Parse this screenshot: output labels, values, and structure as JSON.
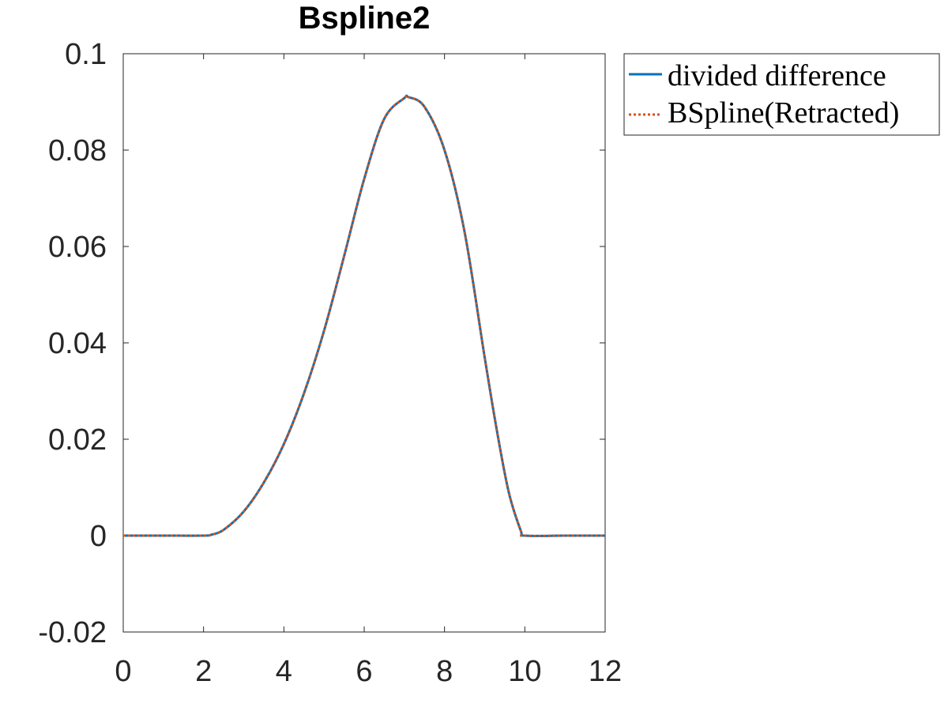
{
  "chart_data": {
    "type": "line",
    "title": "Bspline2",
    "xlabel": "",
    "ylabel": "",
    "xlim": [
      0,
      12
    ],
    "ylim": [
      -0.02,
      0.1
    ],
    "xticks": [
      0,
      2,
      4,
      6,
      8,
      10,
      12
    ],
    "xtick_labels": [
      "0",
      "2",
      "4",
      "6",
      "8",
      "10",
      "12"
    ],
    "yticks": [
      -0.02,
      0,
      0.02,
      0.04,
      0.06,
      0.08,
      0.1
    ],
    "ytick_labels": [
      "-0.02",
      "0",
      "0.02",
      "0.04",
      "0.06",
      "0.08",
      "0.1"
    ],
    "grid": false,
    "legend_position": "outside-top-right",
    "series": [
      {
        "name": "divided difference",
        "color": "#0072BD",
        "style": "solid",
        "x": [
          0,
          1,
          2,
          2.2,
          2.5,
          3,
          3.5,
          4,
          4.5,
          5,
          5.5,
          6,
          6.5,
          7,
          7.1,
          7.5,
          8,
          8.5,
          9,
          9.3,
          9.6,
          9.9,
          10,
          11,
          12
        ],
        "y": [
          0,
          0,
          0,
          0.0002,
          0.0012,
          0.005,
          0.011,
          0.019,
          0.0295,
          0.0425,
          0.058,
          0.074,
          0.0865,
          0.0908,
          0.091,
          0.089,
          0.08,
          0.063,
          0.037,
          0.022,
          0.009,
          0.001,
          0,
          0,
          0
        ]
      },
      {
        "name": "BSpline(Retracted)",
        "color": "#D95319",
        "style": "dotted",
        "x": [
          0,
          1,
          2,
          2.2,
          2.5,
          3,
          3.5,
          4,
          4.5,
          5,
          5.5,
          6,
          6.5,
          7,
          7.1,
          7.5,
          8,
          8.5,
          9,
          9.3,
          9.6,
          9.9,
          10,
          11,
          12
        ],
        "y": [
          0,
          0,
          0,
          0.0002,
          0.0012,
          0.005,
          0.011,
          0.019,
          0.0295,
          0.0425,
          0.058,
          0.074,
          0.0865,
          0.0908,
          0.091,
          0.089,
          0.08,
          0.063,
          0.037,
          0.022,
          0.009,
          0.001,
          0,
          0,
          0
        ]
      }
    ]
  }
}
